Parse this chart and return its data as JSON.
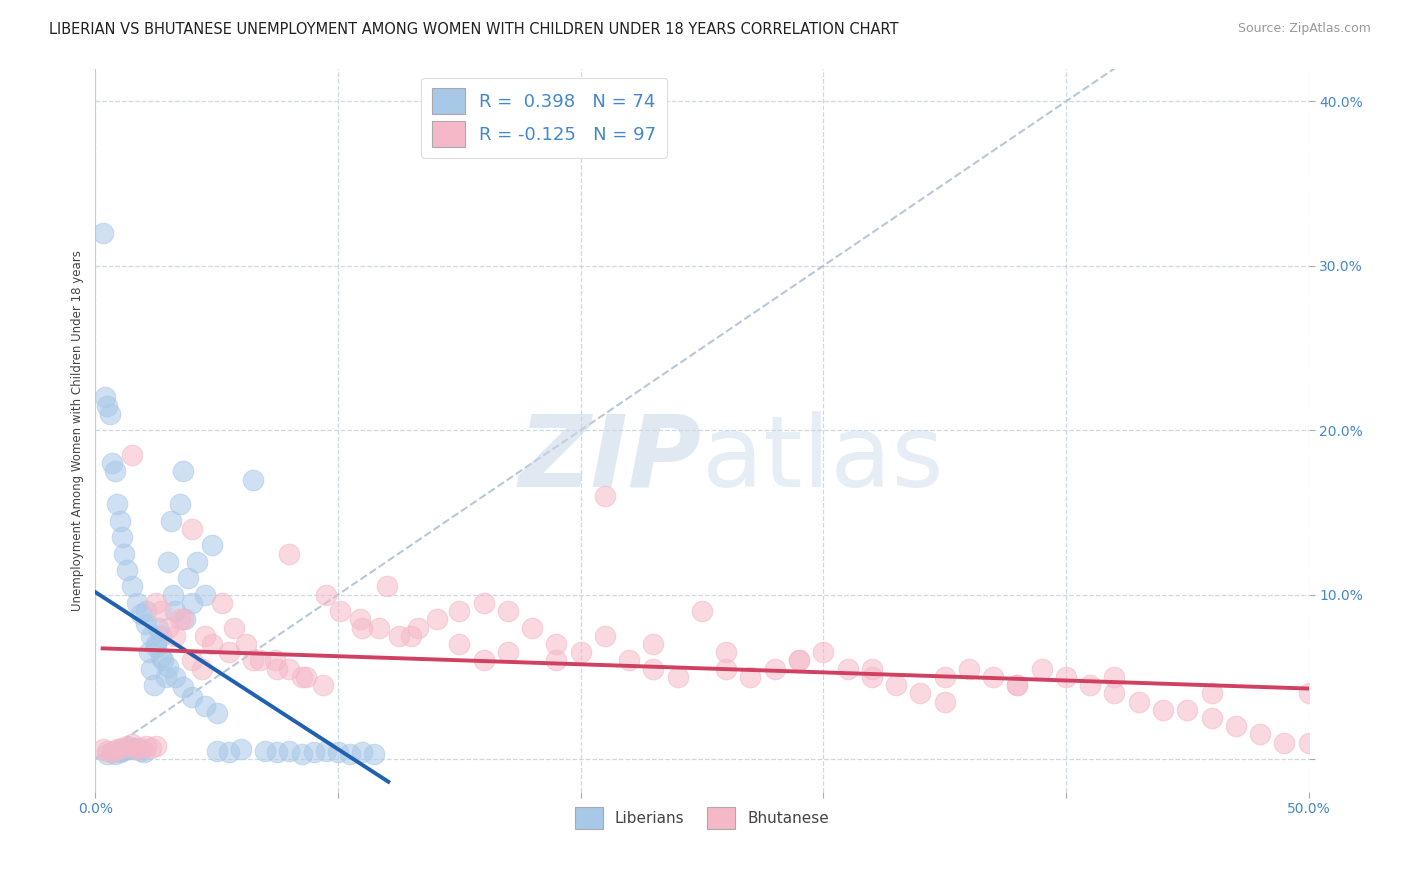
{
  "title": "LIBERIAN VS BHUTANESE UNEMPLOYMENT AMONG WOMEN WITH CHILDREN UNDER 18 YEARS CORRELATION CHART",
  "source": "Source: ZipAtlas.com",
  "ylabel": "Unemployment Among Women with Children Under 18 years",
  "xlim": [
    0.0,
    0.5
  ],
  "ylim": [
    -0.02,
    0.42
  ],
  "yticks": [
    0.0,
    0.1,
    0.2,
    0.3,
    0.4
  ],
  "ytick_labels": [
    "",
    "10.0%",
    "20.0%",
    "30.0%",
    "40.0%"
  ],
  "xticks": [
    0.0,
    0.1,
    0.2,
    0.3,
    0.4,
    0.5
  ],
  "xtick_labels": [
    "0.0%",
    "",
    "",
    "",
    "",
    "50.0%"
  ],
  "liberian_R": 0.398,
  "liberian_N": 74,
  "bhutanese_R": -0.125,
  "bhutanese_N": 97,
  "liberian_color": "#a8c8e8",
  "bhutanese_color": "#f5b8c8",
  "liberian_line_color": "#2060b0",
  "bhutanese_line_color": "#d04060",
  "diagonal_color": "#b8c8d8",
  "title_fontsize": 10.5,
  "axis_label_fontsize": 8.5,
  "tick_fontsize": 10,
  "source_fontsize": 9,
  "liberian_x": [
    0.005,
    0.007,
    0.008,
    0.009,
    0.01,
    0.011,
    0.012,
    0.013,
    0.014,
    0.015,
    0.016,
    0.017,
    0.018,
    0.019,
    0.02,
    0.021,
    0.022,
    0.023,
    0.024,
    0.025,
    0.026,
    0.027,
    0.028,
    0.029,
    0.03,
    0.031,
    0.032,
    0.033,
    0.035,
    0.036,
    0.037,
    0.038,
    0.04,
    0.042,
    0.045,
    0.048,
    0.05,
    0.055,
    0.06,
    0.065,
    0.07,
    0.075,
    0.08,
    0.085,
    0.09,
    0.095,
    0.1,
    0.105,
    0.11,
    0.115,
    0.003,
    0.004,
    0.005,
    0.006,
    0.007,
    0.008,
    0.009,
    0.01,
    0.011,
    0.012,
    0.013,
    0.015,
    0.017,
    0.019,
    0.021,
    0.023,
    0.025,
    0.027,
    0.03,
    0.033,
    0.036,
    0.04,
    0.045,
    0.05
  ],
  "liberian_y": [
    0.003,
    0.004,
    0.003,
    0.005,
    0.004,
    0.005,
    0.006,
    0.007,
    0.006,
    0.007,
    0.006,
    0.007,
    0.006,
    0.005,
    0.004,
    0.09,
    0.065,
    0.055,
    0.045,
    0.07,
    0.08,
    0.075,
    0.06,
    0.05,
    0.12,
    0.145,
    0.1,
    0.09,
    0.155,
    0.175,
    0.085,
    0.11,
    0.095,
    0.12,
    0.1,
    0.13,
    0.005,
    0.004,
    0.006,
    0.17,
    0.005,
    0.004,
    0.005,
    0.003,
    0.004,
    0.005,
    0.004,
    0.003,
    0.004,
    0.003,
    0.32,
    0.22,
    0.215,
    0.21,
    0.18,
    0.175,
    0.155,
    0.145,
    0.135,
    0.125,
    0.115,
    0.105,
    0.095,
    0.088,
    0.082,
    0.075,
    0.068,
    0.062,
    0.056,
    0.05,
    0.044,
    0.038,
    0.032,
    0.028
  ],
  "bhutanese_x": [
    0.003,
    0.005,
    0.007,
    0.009,
    0.011,
    0.013,
    0.015,
    0.017,
    0.019,
    0.021,
    0.023,
    0.025,
    0.027,
    0.03,
    0.033,
    0.036,
    0.04,
    0.044,
    0.048,
    0.052,
    0.057,
    0.062,
    0.068,
    0.074,
    0.08,
    0.087,
    0.094,
    0.101,
    0.109,
    0.117,
    0.125,
    0.133,
    0.141,
    0.15,
    0.16,
    0.17,
    0.18,
    0.19,
    0.2,
    0.21,
    0.22,
    0.23,
    0.24,
    0.25,
    0.26,
    0.27,
    0.28,
    0.29,
    0.3,
    0.31,
    0.32,
    0.33,
    0.34,
    0.35,
    0.36,
    0.37,
    0.38,
    0.39,
    0.4,
    0.41,
    0.42,
    0.43,
    0.44,
    0.45,
    0.46,
    0.47,
    0.48,
    0.49,
    0.5,
    0.015,
    0.025,
    0.035,
    0.045,
    0.055,
    0.065,
    0.075,
    0.085,
    0.095,
    0.11,
    0.13,
    0.15,
    0.17,
    0.19,
    0.21,
    0.23,
    0.26,
    0.29,
    0.32,
    0.35,
    0.38,
    0.42,
    0.46,
    0.5,
    0.04,
    0.08,
    0.12,
    0.16
  ],
  "bhutanese_y": [
    0.006,
    0.005,
    0.004,
    0.006,
    0.007,
    0.008,
    0.009,
    0.006,
    0.007,
    0.008,
    0.007,
    0.008,
    0.09,
    0.08,
    0.075,
    0.085,
    0.06,
    0.055,
    0.07,
    0.095,
    0.08,
    0.07,
    0.06,
    0.06,
    0.055,
    0.05,
    0.045,
    0.09,
    0.085,
    0.08,
    0.075,
    0.08,
    0.085,
    0.09,
    0.095,
    0.09,
    0.08,
    0.07,
    0.065,
    0.16,
    0.06,
    0.055,
    0.05,
    0.09,
    0.055,
    0.05,
    0.055,
    0.06,
    0.065,
    0.055,
    0.05,
    0.045,
    0.04,
    0.035,
    0.055,
    0.05,
    0.045,
    0.055,
    0.05,
    0.045,
    0.04,
    0.035,
    0.03,
    0.03,
    0.025,
    0.02,
    0.015,
    0.01,
    0.01,
    0.185,
    0.095,
    0.085,
    0.075,
    0.065,
    0.06,
    0.055,
    0.05,
    0.1,
    0.08,
    0.075,
    0.07,
    0.065,
    0.06,
    0.075,
    0.07,
    0.065,
    0.06,
    0.055,
    0.05,
    0.045,
    0.05,
    0.04,
    0.04,
    0.14,
    0.125,
    0.105,
    0.06
  ]
}
